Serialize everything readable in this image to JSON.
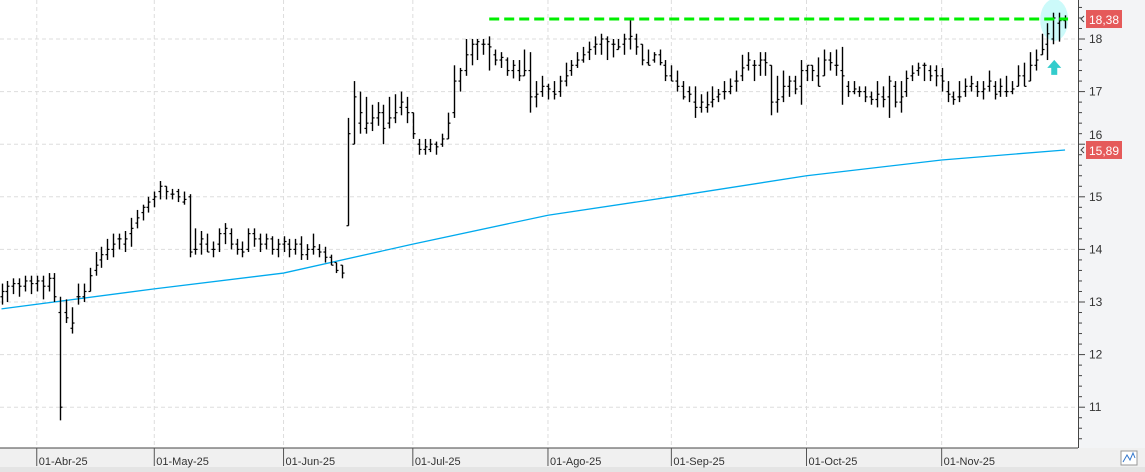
{
  "chart_data": {
    "type": "ohlc",
    "title": "",
    "ylim": [
      10.2,
      18.75
    ],
    "grid": true,
    "y_ticks": [
      "11",
      "12",
      "13",
      "14",
      "15",
      "16",
      "17",
      "18"
    ],
    "y_tick_values": [
      11,
      12,
      13,
      14,
      15,
      16,
      17,
      18
    ],
    "x_ticks": [
      {
        "label": "01-Abr-25",
        "bar": 6
      },
      {
        "label": "01-May-25",
        "bar": 26
      },
      {
        "label": "01-Jun-25",
        "bar": 48
      },
      {
        "label": "01-Jul-25",
        "bar": 70
      },
      {
        "label": "01-Ago-25",
        "bar": 93
      },
      {
        "label": "01-Sep-25",
        "bar": 114
      },
      {
        "label": "01-Oct-25",
        "bar": 137
      },
      {
        "label": "01-Nov-25",
        "bar": 160
      }
    ],
    "bars_ohlc": [
      [
        13.1,
        13.35,
        12.95,
        13.2
      ],
      [
        13.2,
        13.4,
        13.0,
        13.3
      ],
      [
        13.3,
        13.45,
        13.15,
        13.35
      ],
      [
        13.35,
        13.45,
        13.1,
        13.3
      ],
      [
        13.3,
        13.5,
        13.2,
        13.4
      ],
      [
        13.4,
        13.5,
        13.15,
        13.35
      ],
      [
        13.35,
        13.5,
        13.2,
        13.4
      ],
      [
        13.4,
        13.5,
        13.05,
        13.3
      ],
      [
        13.3,
        13.55,
        13.2,
        13.45
      ],
      [
        13.45,
        13.55,
        13.0,
        13.1
      ],
      [
        12.8,
        13.1,
        10.75,
        11.0
      ],
      [
        12.8,
        13.05,
        12.6,
        12.7
      ],
      [
        12.5,
        12.9,
        12.4,
        12.6
      ],
      [
        13.1,
        13.35,
        12.95,
        13.1
      ],
      [
        13.1,
        13.35,
        13.0,
        13.2
      ],
      [
        13.2,
        13.65,
        13.2,
        13.5
      ],
      [
        13.6,
        13.95,
        13.5,
        13.7
      ],
      [
        13.8,
        14.05,
        13.65,
        13.9
      ],
      [
        13.9,
        14.2,
        13.8,
        14.0
      ],
      [
        14.0,
        14.3,
        13.85,
        14.1
      ],
      [
        14.2,
        14.3,
        14.0,
        14.2
      ],
      [
        14.1,
        14.35,
        13.95,
        14.2
      ],
      [
        14.3,
        14.6,
        14.05,
        14.4
      ],
      [
        14.5,
        14.75,
        14.4,
        14.6
      ],
      [
        14.7,
        14.85,
        14.55,
        14.8
      ],
      [
        14.8,
        15.0,
        14.7,
        14.9
      ],
      [
        14.95,
        15.1,
        14.8,
        15.0
      ],
      [
        15.1,
        15.3,
        14.95,
        15.2
      ],
      [
        15.2,
        15.2,
        14.95,
        15.1
      ],
      [
        15.05,
        15.15,
        14.95,
        15.05
      ],
      [
        15.1,
        15.15,
        14.9,
        15.0
      ],
      [
        14.9,
        15.1,
        14.85,
        14.95
      ],
      [
        15.0,
        15.05,
        13.85,
        13.95
      ],
      [
        14.0,
        14.4,
        13.9,
        14.0
      ],
      [
        14.1,
        14.35,
        13.9,
        14.2
      ],
      [
        14.1,
        14.3,
        13.95,
        13.95
      ],
      [
        14.0,
        14.15,
        13.85,
        14.0
      ],
      [
        14.1,
        14.4,
        13.95,
        14.3
      ],
      [
        14.3,
        14.5,
        14.1,
        14.4
      ],
      [
        14.3,
        14.4,
        14.0,
        14.1
      ],
      [
        14.1,
        14.2,
        13.9,
        14.0
      ],
      [
        14.0,
        14.15,
        13.85,
        13.95
      ],
      [
        14.0,
        14.4,
        13.95,
        14.3
      ],
      [
        14.3,
        14.4,
        14.05,
        14.2
      ],
      [
        14.2,
        14.3,
        13.95,
        14.1
      ],
      [
        14.1,
        14.3,
        14.0,
        14.2
      ],
      [
        14.2,
        14.25,
        13.9,
        14.0
      ],
      [
        14.0,
        14.2,
        13.85,
        14.1
      ],
      [
        14.1,
        14.25,
        13.95,
        14.15
      ],
      [
        14.1,
        14.2,
        13.85,
        14.0
      ],
      [
        14.0,
        14.2,
        13.9,
        14.1
      ],
      [
        14.1,
        14.25,
        13.8,
        13.9
      ],
      [
        13.9,
        14.1,
        13.8,
        14.0
      ],
      [
        14.0,
        14.3,
        13.9,
        14.05
      ],
      [
        14.0,
        14.1,
        13.85,
        13.95
      ],
      [
        13.95,
        14.05,
        13.75,
        13.85
      ],
      [
        13.85,
        13.9,
        13.7,
        13.7
      ],
      [
        13.75,
        13.75,
        13.55,
        13.6
      ],
      [
        13.7,
        13.7,
        13.45,
        13.55
      ],
      [
        14.45,
        16.5,
        14.45,
        16.2
      ],
      [
        16.0,
        17.2,
        16.0,
        16.9
      ],
      [
        16.4,
        17.0,
        16.2,
        16.6
      ],
      [
        16.3,
        16.9,
        16.2,
        16.4
      ],
      [
        16.4,
        16.75,
        16.25,
        16.5
      ],
      [
        16.5,
        16.8,
        16.35,
        16.6
      ],
      [
        16.6,
        16.75,
        16.0,
        16.3
      ],
      [
        16.4,
        16.9,
        16.3,
        16.5
      ],
      [
        16.5,
        16.95,
        16.4,
        16.6
      ],
      [
        16.7,
        17.0,
        16.55,
        16.8
      ],
      [
        16.7,
        16.9,
        16.4,
        16.6
      ],
      [
        16.6,
        16.6,
        16.1,
        16.2
      ],
      [
        16.0,
        16.1,
        15.8,
        15.9
      ],
      [
        15.9,
        16.1,
        15.8,
        15.95
      ],
      [
        15.9,
        16.1,
        15.85,
        16.0
      ],
      [
        16.0,
        16.05,
        15.8,
        15.95
      ],
      [
        16.0,
        16.2,
        15.95,
        16.1
      ],
      [
        16.1,
        16.6,
        16.1,
        16.4
      ],
      [
        16.6,
        17.5,
        16.5,
        17.2
      ],
      [
        17.2,
        17.45,
        17.0,
        17.4
      ],
      [
        17.4,
        18.0,
        17.3,
        17.7
      ],
      [
        17.7,
        18.0,
        17.5,
        17.9
      ],
      [
        17.9,
        18.0,
        17.6,
        17.95
      ],
      [
        17.9,
        18.0,
        17.7,
        17.9
      ],
      [
        17.9,
        18.05,
        17.4,
        17.85
      ],
      [
        17.7,
        17.8,
        17.5,
        17.6
      ],
      [
        17.6,
        17.75,
        17.45,
        17.65
      ],
      [
        17.6,
        17.65,
        17.3,
        17.4
      ],
      [
        17.4,
        17.6,
        17.25,
        17.5
      ],
      [
        17.4,
        17.6,
        17.2,
        17.3
      ],
      [
        17.3,
        17.8,
        17.3,
        17.4
      ],
      [
        17.4,
        17.75,
        16.6,
        16.9
      ],
      [
        16.9,
        17.2,
        16.7,
        16.95
      ],
      [
        17.0,
        17.3,
        16.9,
        17.1
      ],
      [
        17.1,
        17.15,
        16.85,
        17.05
      ],
      [
        17.0,
        17.2,
        16.85,
        16.95
      ],
      [
        17.0,
        17.3,
        16.9,
        17.2
      ],
      [
        17.2,
        17.55,
        17.1,
        17.3
      ],
      [
        17.4,
        17.6,
        17.3,
        17.5
      ],
      [
        17.5,
        17.75,
        17.45,
        17.6
      ],
      [
        17.6,
        17.85,
        17.55,
        17.7
      ],
      [
        17.75,
        17.95,
        17.6,
        17.8
      ],
      [
        17.85,
        18.05,
        17.7,
        17.9
      ],
      [
        17.9,
        18.1,
        17.7,
        18.0
      ],
      [
        18.0,
        18.05,
        17.6,
        17.95
      ],
      [
        17.9,
        18.0,
        17.65,
        17.9
      ],
      [
        17.8,
        18.0,
        17.8,
        17.85
      ],
      [
        17.9,
        18.1,
        17.7,
        18.0
      ],
      [
        18.0,
        18.38,
        17.8,
        18.05
      ],
      [
        18.0,
        18.1,
        17.7,
        17.85
      ],
      [
        17.9,
        17.9,
        17.5,
        17.6
      ],
      [
        17.55,
        17.8,
        17.5,
        17.5
      ],
      [
        17.6,
        17.75,
        17.55,
        17.7
      ],
      [
        17.7,
        17.8,
        17.5,
        17.55
      ],
      [
        17.5,
        17.6,
        17.2,
        17.3
      ],
      [
        17.3,
        17.5,
        17.2,
        17.2
      ],
      [
        17.2,
        17.4,
        17.0,
        17.1
      ],
      [
        17.1,
        17.2,
        16.85,
        16.9
      ],
      [
        17.0,
        17.1,
        16.8,
        16.95
      ],
      [
        16.8,
        17.1,
        16.5,
        16.7
      ],
      [
        16.7,
        16.95,
        16.6,
        16.8
      ],
      [
        16.7,
        17.0,
        16.6,
        16.75
      ],
      [
        16.8,
        17.1,
        16.7,
        16.85
      ],
      [
        16.9,
        17.05,
        16.8,
        16.95
      ],
      [
        17.0,
        17.2,
        16.85,
        17.0
      ],
      [
        17.0,
        17.25,
        16.95,
        17.1
      ],
      [
        17.2,
        17.4,
        17.0,
        17.2
      ],
      [
        17.3,
        17.7,
        17.2,
        17.45
      ],
      [
        17.5,
        17.75,
        17.4,
        17.6
      ],
      [
        17.5,
        17.6,
        17.2,
        17.5
      ],
      [
        17.5,
        17.75,
        17.3,
        17.6
      ],
      [
        17.6,
        17.75,
        17.3,
        17.55
      ],
      [
        17.5,
        17.5,
        16.55,
        16.8
      ],
      [
        16.8,
        17.3,
        16.6,
        16.85
      ],
      [
        16.9,
        17.4,
        16.8,
        17.1
      ],
      [
        17.1,
        17.3,
        16.9,
        17.2
      ],
      [
        17.2,
        17.3,
        16.95,
        17.05
      ],
      [
        17.1,
        17.6,
        16.75,
        17.4
      ],
      [
        17.4,
        17.5,
        17.2,
        17.5
      ],
      [
        17.5,
        17.5,
        17.2,
        17.4
      ],
      [
        17.3,
        17.65,
        17.1,
        17.1
      ],
      [
        17.3,
        17.8,
        17.3,
        17.6
      ],
      [
        17.6,
        17.75,
        17.4,
        17.55
      ],
      [
        17.5,
        17.8,
        17.3,
        17.5
      ],
      [
        17.4,
        17.85,
        16.75,
        17.3
      ],
      [
        17.1,
        17.2,
        16.9,
        17.0
      ],
      [
        17.0,
        17.2,
        16.95,
        17.05
      ],
      [
        17.0,
        17.1,
        16.9,
        17.0
      ],
      [
        17.0,
        17.1,
        16.8,
        16.9
      ],
      [
        16.9,
        17.0,
        16.75,
        16.85
      ],
      [
        16.85,
        17.2,
        16.7,
        16.95
      ],
      [
        16.9,
        17.1,
        16.7,
        16.85
      ],
      [
        16.9,
        17.3,
        16.5,
        17.2
      ],
      [
        17.1,
        17.2,
        16.7,
        16.8
      ],
      [
        16.8,
        17.2,
        16.6,
        16.9
      ],
      [
        17.0,
        17.4,
        16.9,
        17.25
      ],
      [
        17.3,
        17.5,
        17.2,
        17.35
      ],
      [
        17.4,
        17.55,
        17.3,
        17.45
      ],
      [
        17.5,
        17.55,
        17.2,
        17.5
      ],
      [
        17.4,
        17.5,
        17.2,
        17.3
      ],
      [
        17.4,
        17.5,
        17.1,
        17.3
      ],
      [
        17.3,
        17.45,
        17.0,
        17.2
      ],
      [
        17.0,
        17.2,
        16.8,
        16.95
      ],
      [
        16.9,
        17.0,
        16.75,
        16.85
      ],
      [
        16.9,
        17.2,
        16.8,
        16.9
      ],
      [
        17.0,
        17.25,
        16.9,
        17.1
      ],
      [
        17.1,
        17.3,
        17.0,
        17.15
      ],
      [
        17.1,
        17.2,
        16.9,
        17.0
      ],
      [
        17.0,
        17.2,
        16.85,
        17.05
      ],
      [
        17.1,
        17.4,
        17.0,
        17.2
      ],
      [
        17.1,
        17.2,
        16.85,
        16.95
      ],
      [
        17.0,
        17.25,
        16.9,
        17.1
      ],
      [
        17.0,
        17.3,
        16.9,
        17.0
      ],
      [
        17.0,
        17.2,
        16.95,
        17.05
      ],
      [
        17.1,
        17.5,
        17.1,
        17.3
      ],
      [
        17.3,
        17.55,
        17.1,
        17.1
      ],
      [
        17.2,
        17.75,
        17.2,
        17.5
      ],
      [
        17.5,
        17.8,
        17.4,
        17.6
      ],
      [
        17.7,
        18.1,
        17.7,
        17.8
      ],
      [
        17.9,
        18.3,
        17.6,
        18.1
      ],
      [
        18.0,
        18.5,
        17.9,
        18.4
      ],
      [
        18.3,
        18.5,
        17.95,
        18.35
      ],
      [
        18.35,
        18.45,
        18.2,
        18.38
      ]
    ],
    "moving_average_points": [
      [
        0,
        12.87
      ],
      [
        26,
        13.25
      ],
      [
        48,
        13.55
      ],
      [
        70,
        14.1
      ],
      [
        93,
        14.65
      ],
      [
        114,
        15.0
      ],
      [
        137,
        15.4
      ],
      [
        160,
        15.7
      ],
      [
        181,
        15.89
      ]
    ],
    "resistance_line": {
      "value": 18.38,
      "from_bar": 83,
      "to_bar": 181
    },
    "last_price_label": "18,38",
    "last_price_value": 18.38,
    "ma_price_label": "15,89",
    "ma_price_value": 15.89,
    "highlight_bar": 180,
    "arrow": {
      "bar": 179.5,
      "value": 17.45,
      "direction": "up"
    },
    "colors": {
      "bars": "#000000",
      "moving_average": "#00aaee",
      "resistance": "#00ee00",
      "highlight": "#ccfafa",
      "arrow": "#33cccc",
      "price_label_bg": "#e55a5a",
      "grid": "#dddddd"
    },
    "corner_icon": "chart-type-icon"
  }
}
